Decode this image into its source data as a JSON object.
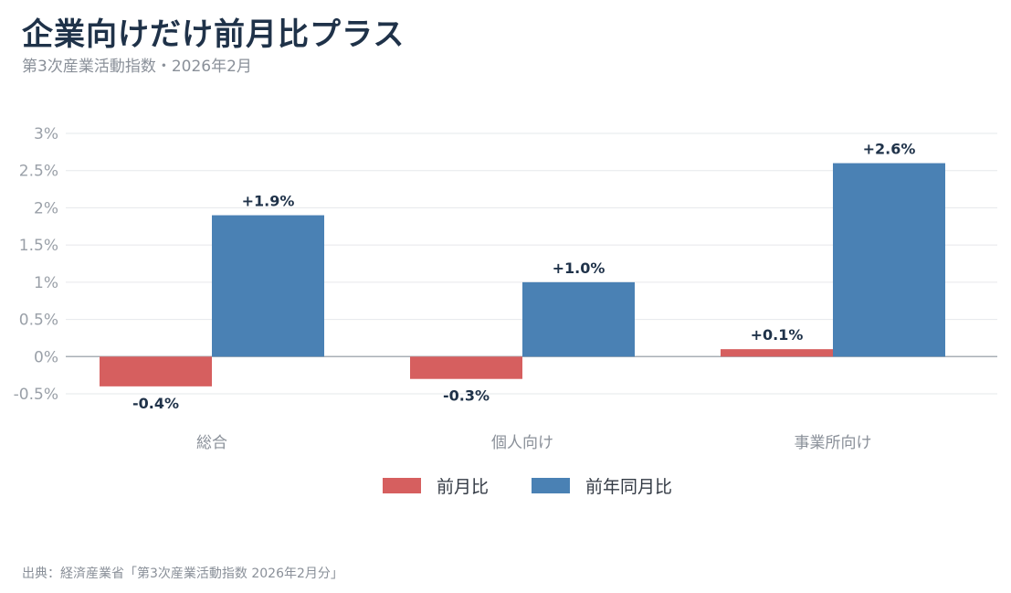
{
  "header": {
    "title": "企業向けだけ前月比プラス",
    "subtitle": "第3次産業活動指数・2026年2月"
  },
  "footer": {
    "source": "出典：経済産業省「第3次産業活動指数 2026年2月分」"
  },
  "colors": {
    "mom": "#d65f5f",
    "yoy": "#4a81b4"
  },
  "chart_data": {
    "type": "bar",
    "categories": [
      "総合",
      "個人向け",
      "事業所向け"
    ],
    "series": [
      {
        "name": "前月比",
        "values": [
          -0.4,
          -0.3,
          0.1
        ],
        "labels": [
          "-0.4%",
          "-0.3%",
          "+0.1%"
        ]
      },
      {
        "name": "前年同月比",
        "values": [
          1.9,
          1.0,
          2.6
        ],
        "labels": [
          "+1.9%",
          "+1.0%",
          "+2.6%"
        ]
      }
    ],
    "yticks": [
      "-0.5%",
      "0%",
      "0.5%",
      "1%",
      "1.5%",
      "2%",
      "2.5%",
      "3%"
    ],
    "ytick_values": [
      -0.5,
      0,
      0.5,
      1,
      1.5,
      2,
      2.5,
      3
    ],
    "ylim": [
      -0.5,
      3
    ],
    "grid": true,
    "legend": "bottom-center"
  }
}
